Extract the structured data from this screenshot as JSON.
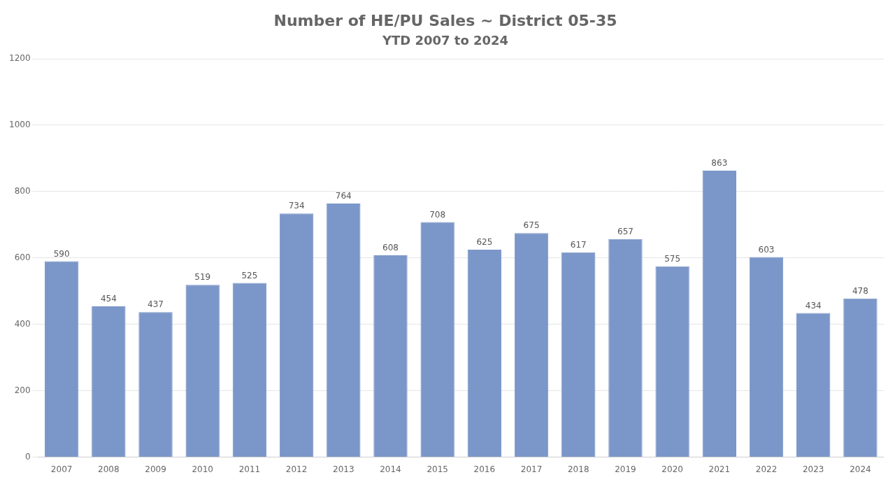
{
  "chart_data": {
    "type": "bar",
    "title": "Number of HE/PU Sales ~ District 05-35",
    "subtitle": "YTD 2007 to 2024",
    "categories": [
      "2007",
      "2008",
      "2009",
      "2010",
      "2011",
      "2012",
      "2013",
      "2014",
      "2015",
      "2016",
      "2017",
      "2018",
      "2019",
      "2020",
      "2021",
      "2022",
      "2023",
      "2024"
    ],
    "values": [
      590,
      454,
      437,
      519,
      525,
      734,
      764,
      608,
      708,
      625,
      675,
      617,
      657,
      575,
      863,
      603,
      434,
      478
    ],
    "color": "#7b96c8",
    "ylim": [
      0,
      1200
    ],
    "yticks": [
      0,
      200,
      400,
      600,
      800,
      1000,
      1200
    ],
    "grid": true,
    "data_labels": true
  }
}
